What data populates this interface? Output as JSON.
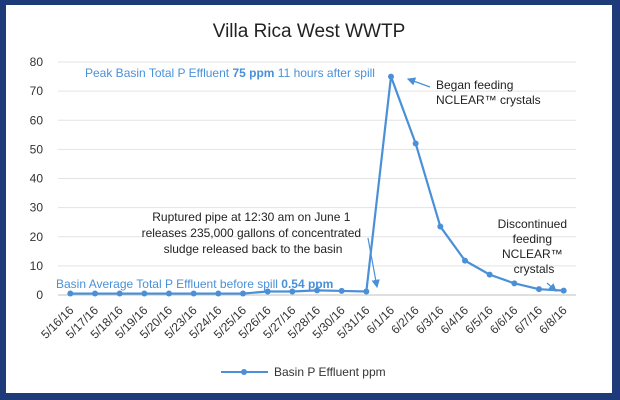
{
  "chart_data": {
    "type": "line",
    "title": "Villa Rica West WWTP",
    "xlabel": "",
    "ylabel": "",
    "ylim": [
      0,
      80
    ],
    "yticks": [
      0,
      10,
      20,
      30,
      40,
      50,
      60,
      70,
      80
    ],
    "grid": true,
    "legend_position": "bottom",
    "categories": [
      "5/16/16",
      "5/17/16",
      "5/18/16",
      "5/19/16",
      "5/20/16",
      "5/23/16",
      "5/24/16",
      "5/25/16",
      "5/26/16",
      "5/27/16",
      "5/28/16",
      "5/30/16",
      "5/31/16",
      "6/1/16",
      "6/2/16",
      "6/3/16",
      "6/4/16",
      "6/5/16",
      "6/6/16",
      "6/7/16",
      "6/8/16"
    ],
    "series": [
      {
        "name": "Basin P Effluent ppm",
        "color": "#4a90d9",
        "values": [
          0.5,
          0.5,
          0.5,
          0.5,
          0.5,
          0.5,
          0.5,
          0.5,
          1.2,
          1.2,
          1.6,
          1.4,
          1.2,
          75,
          52,
          23.5,
          11.8,
          7,
          4,
          2,
          1.5
        ]
      }
    ],
    "annotations": {
      "peak": {
        "prefix": "Peak Basin Total P Effluent ",
        "value": "75 ppm",
        "suffix": " 11 hours after spill"
      },
      "began_feeding": [
        "Began feeding",
        "NCLEAR™ crystals"
      ],
      "ruptured": [
        "Ruptured pipe at 12:30 am on June 1",
        "releases 235,000 gallons of concentrated",
        "sludge released back to the basin"
      ],
      "discontinued": [
        "Discontinued",
        "feeding",
        "NCLEAR™",
        "crystals"
      ],
      "average": {
        "prefix": "Basin Average Total P Effluent before spill ",
        "value": "0.54 ppm"
      }
    }
  }
}
